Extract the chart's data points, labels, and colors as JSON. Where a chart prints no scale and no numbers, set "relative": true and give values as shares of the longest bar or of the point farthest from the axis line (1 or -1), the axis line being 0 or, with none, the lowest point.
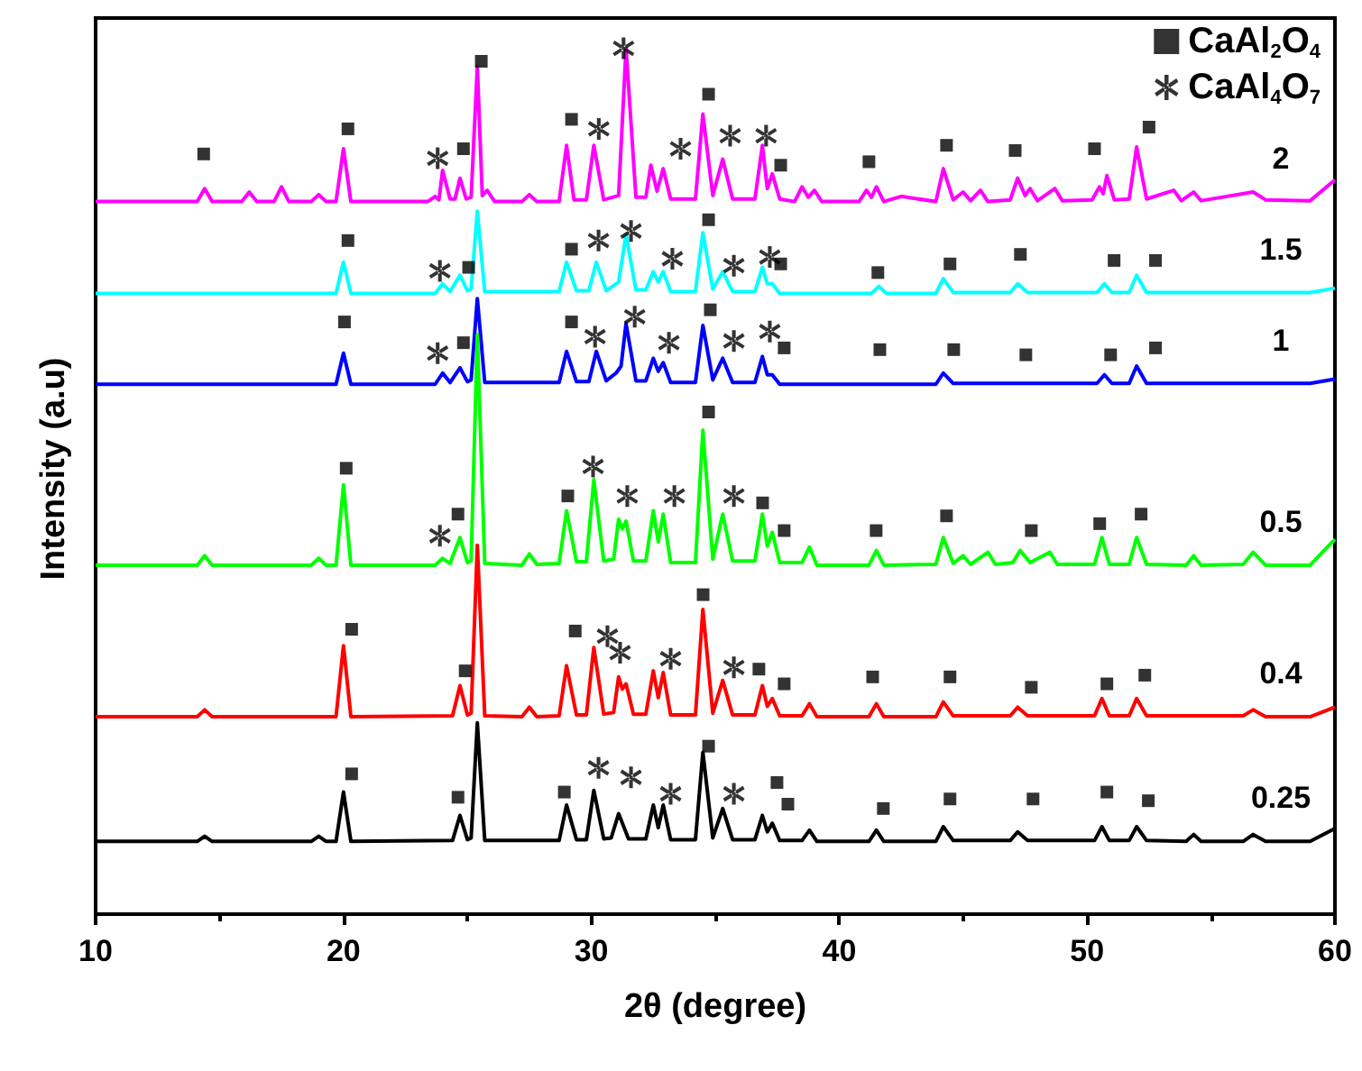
{
  "chart_data": {
    "type": "line",
    "relative": true,
    "xlabel": "2θ (degree)",
    "ylabel": "Intensity (a.u)",
    "xlim": [
      10,
      60
    ],
    "xticks": [
      10,
      20,
      30,
      40,
      50,
      60
    ],
    "grid": false,
    "legend": "top right",
    "marker": "none",
    "series": [
      {
        "name": "2",
        "color": "#ff00ff",
        "x": [
          10,
          14.1,
          14.4,
          14.7,
          15.9,
          16.2,
          16.5,
          17.2,
          17.5,
          17.8,
          18.7,
          19,
          19.3,
          19.7,
          20,
          20.3,
          23.4,
          23.7,
          23.85,
          24,
          24.3,
          24.5,
          24.7,
          24.95,
          25.15,
          25.4,
          25.6,
          25.8,
          26.1,
          27.2,
          27.5,
          27.8,
          28.7,
          29,
          29.3,
          29.8,
          30.1,
          30.5,
          31.1,
          31.4,
          31.8,
          32.2,
          32.4,
          32.65,
          32.9,
          33.2,
          34.2,
          34.5,
          34.9,
          35.3,
          35.7,
          36.6,
          36.9,
          37.1,
          37.3,
          37.6,
          38.2,
          38.5,
          38.75,
          39,
          39.3,
          40.8,
          41.1,
          41.3,
          41.5,
          41.8,
          42.5,
          43.9,
          44.2,
          44.6,
          45,
          45.3,
          45.7,
          46,
          46.9,
          47.2,
          47.5,
          47.7,
          48,
          48.7,
          49,
          50.2,
          50.5,
          50.65,
          50.8,
          51.1,
          51.7,
          52,
          52.4,
          53.5,
          53.8,
          54.3,
          54.6,
          56.7,
          57.2,
          59,
          60
        ],
        "values": [
          0.823,
          0.823,
          0.838,
          0.823,
          0.823,
          0.834,
          0.823,
          0.823,
          0.84,
          0.823,
          0.823,
          0.831,
          0.823,
          0.823,
          0.884,
          0.823,
          0.823,
          0.829,
          0.825,
          0.859,
          0.826,
          0.826,
          0.85,
          0.826,
          0.828,
          0.979,
          0.83,
          0.836,
          0.823,
          0.823,
          0.831,
          0.823,
          0.823,
          0.888,
          0.825,
          0.825,
          0.888,
          0.825,
          0.83,
          1.0,
          0.828,
          0.828,
          0.865,
          0.835,
          0.861,
          0.826,
          0.826,
          0.924,
          0.83,
          0.872,
          0.826,
          0.826,
          0.888,
          0.838,
          0.855,
          0.826,
          0.823,
          0.84,
          0.828,
          0.836,
          0.823,
          0.823,
          0.836,
          0.828,
          0.84,
          0.823,
          0.829,
          0.823,
          0.861,
          0.825,
          0.834,
          0.824,
          0.836,
          0.823,
          0.825,
          0.85,
          0.83,
          0.838,
          0.824,
          0.838,
          0.824,
          0.825,
          0.84,
          0.832,
          0.853,
          0.825,
          0.826,
          0.886,
          0.826,
          0.836,
          0.824,
          0.834,
          0.824,
          0.834,
          0.825,
          0.824,
          0.848
        ]
      },
      {
        "name": "1.5",
        "color": "#00ffff",
        "x": [
          10,
          19.7,
          20,
          20.3,
          23.7,
          24,
          24.3,
          24.7,
          25.0,
          25.15,
          25.4,
          25.7,
          28.7,
          29,
          29.4,
          29.9,
          30.2,
          30.6,
          31.1,
          31.4,
          31.8,
          32.2,
          32.5,
          32.7,
          32.9,
          33.2,
          34.2,
          34.5,
          34.9,
          35.3,
          35.7,
          36.6,
          36.9,
          37.1,
          37.3,
          37.6,
          41.3,
          41.6,
          41.9,
          43.9,
          44.2,
          44.6,
          46.9,
          47.2,
          47.6,
          50.4,
          50.7,
          51,
          51.7,
          52,
          52.4,
          59,
          60
        ],
        "values": [
          0.717,
          0.717,
          0.753,
          0.717,
          0.717,
          0.728,
          0.719,
          0.738,
          0.72,
          0.722,
          0.812,
          0.719,
          0.719,
          0.753,
          0.72,
          0.72,
          0.753,
          0.72,
          0.73,
          0.785,
          0.721,
          0.721,
          0.742,
          0.73,
          0.742,
          0.719,
          0.719,
          0.787,
          0.722,
          0.742,
          0.719,
          0.719,
          0.747,
          0.728,
          0.728,
          0.717,
          0.717,
          0.725,
          0.717,
          0.717,
          0.734,
          0.718,
          0.718,
          0.728,
          0.718,
          0.718,
          0.728,
          0.718,
          0.718,
          0.738,
          0.718,
          0.718,
          0.723
        ]
      },
      {
        "name": "1",
        "color": "#0000ff",
        "x": [
          10,
          19.7,
          20,
          20.3,
          23.7,
          24,
          24.3,
          24.7,
          25.0,
          25.15,
          25.4,
          25.7,
          28.7,
          29,
          29.4,
          29.9,
          30.2,
          30.6,
          31.0,
          31.2,
          31.4,
          31.8,
          32.2,
          32.5,
          32.7,
          32.9,
          33.2,
          34.2,
          34.5,
          34.9,
          35.3,
          35.7,
          36.6,
          36.9,
          37.1,
          37.3,
          37.6,
          43.9,
          44.2,
          44.6,
          50.4,
          50.7,
          51,
          51.7,
          52,
          52.4,
          59,
          60
        ],
        "values": [
          0.612,
          0.612,
          0.648,
          0.612,
          0.612,
          0.625,
          0.614,
          0.631,
          0.615,
          0.617,
          0.711,
          0.614,
          0.614,
          0.65,
          0.615,
          0.615,
          0.65,
          0.616,
          0.625,
          0.633,
          0.682,
          0.616,
          0.616,
          0.642,
          0.627,
          0.637,
          0.614,
          0.614,
          0.68,
          0.617,
          0.642,
          0.614,
          0.614,
          0.644,
          0.623,
          0.623,
          0.612,
          0.612,
          0.625,
          0.613,
          0.613,
          0.623,
          0.613,
          0.613,
          0.633,
          0.613,
          0.613,
          0.618
        ]
      },
      {
        "name": "0.5",
        "color": "#00ff00",
        "x": [
          10,
          14.1,
          14.4,
          14.7,
          18.7,
          19,
          19.3,
          19.7,
          20,
          20.3,
          23.7,
          24,
          24.3,
          24.7,
          25.0,
          25.15,
          25.4,
          25.7,
          27.2,
          27.5,
          27.8,
          28.7,
          29,
          29.4,
          29.8,
          30.1,
          30.5,
          30.9,
          31.1,
          31.25,
          31.4,
          31.7,
          32.2,
          32.5,
          32.7,
          32.9,
          33.2,
          34.2,
          34.5,
          34.9,
          35.3,
          35.7,
          36.6,
          36.9,
          37.1,
          37.3,
          37.6,
          38.5,
          38.8,
          39.1,
          41.2,
          41.5,
          41.8,
          43.9,
          44.2,
          44.6,
          45,
          45.3,
          46,
          46.3,
          47,
          47.3,
          47.7,
          48.5,
          48.8,
          50.3,
          50.6,
          50.9,
          51.7,
          52,
          52.4,
          54,
          54.3,
          54.6,
          56.3,
          56.7,
          57.2,
          59,
          60
        ],
        "values": [
          0.403,
          0.403,
          0.414,
          0.403,
          0.403,
          0.411,
          0.403,
          0.403,
          0.496,
          0.403,
          0.403,
          0.411,
          0.405,
          0.435,
          0.406,
          0.408,
          0.669,
          0.405,
          0.403,
          0.416,
          0.404,
          0.405,
          0.466,
          0.407,
          0.407,
          0.502,
          0.408,
          0.41,
          0.456,
          0.445,
          0.454,
          0.408,
          0.408,
          0.466,
          0.43,
          0.462,
          0.406,
          0.406,
          0.559,
          0.41,
          0.462,
          0.408,
          0.408,
          0.462,
          0.425,
          0.441,
          0.406,
          0.406,
          0.424,
          0.403,
          0.403,
          0.42,
          0.403,
          0.404,
          0.435,
          0.405,
          0.414,
          0.404,
          0.418,
          0.404,
          0.406,
          0.42,
          0.406,
          0.418,
          0.404,
          0.404,
          0.435,
          0.404,
          0.404,
          0.435,
          0.404,
          0.403,
          0.414,
          0.403,
          0.404,
          0.418,
          0.403,
          0.403,
          0.433
        ]
      },
      {
        "name": "0.4",
        "color": "#ff0000",
        "x": [
          10,
          14.1,
          14.4,
          14.7,
          19.7,
          20,
          20.3,
          24.4,
          24.7,
          25.0,
          25.15,
          25.4,
          25.7,
          27.2,
          27.5,
          27.8,
          28.7,
          29,
          29.4,
          29.8,
          30.1,
          30.5,
          30.9,
          31.1,
          31.25,
          31.4,
          31.7,
          32.2,
          32.5,
          32.7,
          32.9,
          33.2,
          34.2,
          34.5,
          34.9,
          35.3,
          35.7,
          36.6,
          36.9,
          37.1,
          37.3,
          37.6,
          38.5,
          38.8,
          39.1,
          41.2,
          41.5,
          41.8,
          43.9,
          44.2,
          44.6,
          46.9,
          47.2,
          47.6,
          50.3,
          50.6,
          50.9,
          51.7,
          52,
          52.4,
          56.3,
          56.7,
          57.2,
          59,
          60
        ],
        "values": [
          0.228,
          0.228,
          0.236,
          0.228,
          0.228,
          0.31,
          0.228,
          0.229,
          0.264,
          0.23,
          0.232,
          0.426,
          0.229,
          0.228,
          0.239,
          0.228,
          0.229,
          0.287,
          0.23,
          0.23,
          0.308,
          0.231,
          0.233,
          0.274,
          0.26,
          0.266,
          0.231,
          0.231,
          0.281,
          0.25,
          0.279,
          0.23,
          0.23,
          0.352,
          0.232,
          0.27,
          0.23,
          0.23,
          0.264,
          0.24,
          0.249,
          0.229,
          0.229,
          0.243,
          0.228,
          0.228,
          0.243,
          0.228,
          0.228,
          0.245,
          0.229,
          0.229,
          0.239,
          0.229,
          0.229,
          0.249,
          0.229,
          0.229,
          0.249,
          0.229,
          0.229,
          0.236,
          0.228,
          0.228,
          0.239
        ]
      },
      {
        "name": "0.25",
        "color": "#000000",
        "x": [
          10,
          14.1,
          14.4,
          14.7,
          18.7,
          19,
          19.3,
          19.7,
          20,
          20.3,
          24.4,
          24.7,
          25.0,
          25.15,
          25.4,
          25.7,
          28.7,
          29,
          29.4,
          29.8,
          30.1,
          30.5,
          30.8,
          31.1,
          31.5,
          32.2,
          32.5,
          32.7,
          32.9,
          33.2,
          34.2,
          34.5,
          34.9,
          35.3,
          35.7,
          36.6,
          36.9,
          37.1,
          37.3,
          37.6,
          38.5,
          38.8,
          39.1,
          41.2,
          41.5,
          41.8,
          43.9,
          44.2,
          44.6,
          46.9,
          47.2,
          47.6,
          50.3,
          50.6,
          50.9,
          51.7,
          52,
          52.4,
          54,
          54.3,
          54.6,
          56.3,
          56.7,
          57.2,
          59,
          60
        ],
        "values": [
          0.084,
          0.084,
          0.09,
          0.084,
          0.084,
          0.09,
          0.084,
          0.084,
          0.141,
          0.084,
          0.085,
          0.114,
          0.086,
          0.088,
          0.221,
          0.085,
          0.085,
          0.126,
          0.086,
          0.086,
          0.143,
          0.087,
          0.088,
          0.116,
          0.087,
          0.087,
          0.126,
          0.1,
          0.126,
          0.086,
          0.086,
          0.187,
          0.088,
          0.122,
          0.086,
          0.086,
          0.114,
          0.095,
          0.105,
          0.085,
          0.085,
          0.097,
          0.084,
          0.084,
          0.097,
          0.084,
          0.084,
          0.101,
          0.085,
          0.085,
          0.095,
          0.085,
          0.085,
          0.101,
          0.085,
          0.085,
          0.101,
          0.085,
          0.084,
          0.092,
          0.084,
          0.084,
          0.092,
          0.084,
          0.084,
          0.099
        ]
      },
      {
        "name": "CaAl$_{2}$O$_{4}$",
        "type": "scatter",
        "marker": "square",
        "color": "#000000",
        "x": [
          14.36,
          20.18,
          24.84,
          25.56,
          29.2,
          34.73,
          37.64,
          41.2,
          44.33,
          47.1,
          50.3,
          52.5,
          20.18,
          25.05,
          29.2,
          34.73,
          37.64,
          41.56,
          44.47,
          47.31,
          51.09,
          52.76,
          20.04,
          24.84,
          29.2,
          34.8,
          37.78,
          41.64,
          44.62,
          47.53,
          50.95,
          52.76,
          20.11,
          24.62,
          29.05,
          34.73,
          36.91,
          37.78,
          41.49,
          44.33,
          47.75,
          50.51,
          52.18,
          20.33,
          24.91,
          29.35,
          34.51,
          36.76,
          37.78,
          41.35,
          44.47,
          47.75,
          50.8,
          52.33,
          20.33,
          24.62,
          28.91,
          34.73,
          37.49,
          37.93,
          41.78,
          44.47,
          47.82,
          50.8,
          52.47
        ],
        "values": [
          0.878,
          0.907,
          0.884,
          0.985,
          0.918,
          0.947,
          0.865,
          0.869,
          0.888,
          0.882,
          0.884,
          0.909,
          0.778,
          0.747,
          0.768,
          0.802,
          0.751,
          0.741,
          0.751,
          0.762,
          0.755,
          0.755,
          0.684,
          0.66,
          0.684,
          0.698,
          0.654,
          0.652,
          0.652,
          0.646,
          0.646,
          0.654,
          0.515,
          0.462,
          0.483,
          0.58,
          0.475,
          0.443,
          0.443,
          0.46,
          0.443,
          0.451,
          0.462,
          0.329,
          0.281,
          0.327,
          0.369,
          0.283,
          0.266,
          0.274,
          0.274,
          0.262,
          0.266,
          0.276,
          0.162,
          0.135,
          0.141,
          0.194,
          0.152,
          0.127,
          0.122,
          0.133,
          0.133,
          0.141,
          0.131
        ]
      },
      {
        "name": "CaAl$_{4}$O$_{7}$",
        "type": "scatter",
        "marker": "cross",
        "color": "#000000",
        "x": [
          23.8,
          30.3,
          31.3,
          33.6,
          35.6,
          37.05,
          23.89,
          30.29,
          31.6,
          33.27,
          35.75,
          37.2,
          23.8,
          30.15,
          31.75,
          33.13,
          35.75,
          37.2,
          23.89,
          30.07,
          31.45,
          33.35,
          35.75,
          30.65,
          31.16,
          33.2,
          35.75,
          30.29,
          31.6,
          33.2,
          35.75
        ],
        "values": [
          0.873,
          0.907,
          1.0,
          0.884,
          0.899,
          0.899,
          0.743,
          0.778,
          0.789,
          0.757,
          0.749,
          0.759,
          0.648,
          0.667,
          0.69,
          0.66,
          0.662,
          0.673,
          0.437,
          0.517,
          0.483,
          0.483,
          0.483,
          0.321,
          0.302,
          0.295,
          0.285,
          0.169,
          0.158,
          0.139,
          0.139
        ]
      }
    ]
  }
}
